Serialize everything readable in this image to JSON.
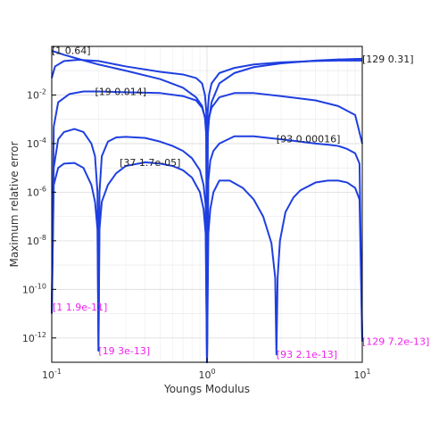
{
  "chart_data": {
    "type": "line",
    "title": "",
    "xlabel": "Youngs Modulus",
    "ylabel": "Maximum relative error",
    "xscale": "log",
    "yscale": "log",
    "xlim": [
      0.1,
      10
    ],
    "ylim": [
      1e-13,
      1
    ],
    "grid": true,
    "colors": {
      "series": "#1f3fe0",
      "max_annotation": "#222222",
      "min_annotation": "#ee22ee"
    },
    "xticks": [
      {
        "value": 0.1,
        "base": "10",
        "exp": "-1"
      },
      {
        "value": 1,
        "base": "10",
        "exp": "0"
      },
      {
        "value": 10,
        "base": "10",
        "exp": "1"
      }
    ],
    "yticks": [
      {
        "value": 1e-12,
        "base": "10",
        "exp": "-12"
      },
      {
        "value": 1e-10,
        "base": "10",
        "exp": "-10"
      },
      {
        "value": 1e-08,
        "base": "10",
        "exp": "-8"
      },
      {
        "value": 1e-06,
        "base": "10",
        "exp": "-6"
      },
      {
        "value": 0.0001,
        "base": "10",
        "exp": "-4"
      },
      {
        "value": 0.01,
        "base": "10",
        "exp": "-2"
      }
    ],
    "series": [
      {
        "x": [
          0.1,
          0.105,
          0.12,
          0.15,
          0.2,
          0.3,
          0.5,
          0.7,
          0.85,
          0.93,
          0.97,
          0.99,
          1.0,
          1.01,
          1.03,
          1.07,
          1.2,
          1.5,
          2,
          3,
          5,
          7,
          10
        ],
        "y": [
          0.64,
          0.6,
          0.45,
          0.3,
          0.18,
          0.1,
          0.045,
          0.02,
          0.008,
          0.0035,
          0.0012,
          0.0002,
          1e-13,
          0.0002,
          0.001,
          0.005,
          0.03,
          0.08,
          0.14,
          0.2,
          0.26,
          0.29,
          0.31
        ]
      },
      {
        "x": [
          0.1,
          0.105,
          0.12,
          0.15,
          0.2,
          0.3,
          0.5,
          0.7,
          0.85,
          0.93,
          0.97,
          0.99,
          1.0,
          1.01,
          1.03,
          1.07,
          1.2,
          1.5,
          2,
          3,
          5,
          7,
          10
        ],
        "y": [
          0.05,
          0.15,
          0.25,
          0.28,
          0.25,
          0.15,
          0.09,
          0.07,
          0.05,
          0.03,
          0.01,
          0.002,
          1e-13,
          0.002,
          0.01,
          0.03,
          0.08,
          0.13,
          0.18,
          0.22,
          0.25,
          0.26,
          0.26
        ]
      },
      {
        "x": [
          0.1,
          0.103,
          0.11,
          0.13,
          0.16,
          0.2,
          0.3,
          0.5,
          0.7,
          0.85,
          0.93,
          0.97,
          0.99,
          1.0,
          1.01,
          1.03,
          1.07,
          1.2,
          1.5,
          2,
          3,
          5,
          7,
          9,
          10
        ],
        "y": [
          1e-11,
          0.0005,
          0.005,
          0.011,
          0.014,
          0.014,
          0.013,
          0.012,
          0.009,
          0.006,
          0.003,
          0.0012,
          0.0003,
          1e-13,
          0.0003,
          0.0012,
          0.003,
          0.008,
          0.012,
          0.012,
          0.009,
          0.006,
          0.0035,
          0.0015,
          0.0001
        ]
      },
      {
        "x": [
          0.1,
          0.103,
          0.11,
          0.12,
          0.14,
          0.16,
          0.18,
          0.19,
          0.197,
          0.2,
          0.203,
          0.21,
          0.23,
          0.26,
          0.3,
          0.4,
          0.5,
          0.6,
          0.7,
          0.8,
          0.9,
          0.95,
          0.98,
          1.0,
          1.02,
          1.05,
          1.1,
          1.2,
          1.5,
          2,
          2.5,
          3,
          4,
          5,
          6,
          7,
          8,
          9,
          9.6,
          10
        ],
        "y": [
          1e-11,
          1e-05,
          0.00015,
          0.0003,
          0.0004,
          0.0003,
          0.0001,
          3e-05,
          1e-06,
          3e-13,
          1e-06,
          3e-05,
          0.00012,
          0.00018,
          0.00019,
          0.00017,
          0.00012,
          8e-05,
          5e-05,
          2.5e-05,
          8e-06,
          2e-06,
          3e-07,
          1e-13,
          3e-06,
          2e-05,
          5e-05,
          0.0001,
          0.0002,
          0.0002,
          0.00017,
          0.00015,
          0.00012,
          0.0001,
          9e-05,
          8e-05,
          6e-05,
          4e-05,
          1.5e-05,
          7.2e-13
        ]
      },
      {
        "x": [
          0.1,
          0.103,
          0.11,
          0.12,
          0.14,
          0.16,
          0.18,
          0.19,
          0.197,
          0.2,
          0.203,
          0.21,
          0.23,
          0.26,
          0.3,
          0.4,
          0.5,
          0.6,
          0.7,
          0.8,
          0.9,
          0.95,
          0.98,
          1.0,
          1.02,
          1.05,
          1.1,
          1.2,
          1.4,
          1.7,
          2.0,
          2.3,
          2.6,
          2.75,
          2.8,
          2.85,
          2.95,
          3.2,
          3.6,
          4,
          5,
          6,
          7,
          8,
          9,
          9.6,
          10
        ],
        "y": [
          1e-11,
          2e-06,
          1e-05,
          1.5e-05,
          1.6e-05,
          1e-05,
          2e-06,
          4e-07,
          3e-08,
          3e-13,
          3e-08,
          4e-07,
          2e-06,
          6e-06,
          1.2e-05,
          1.7e-05,
          1.5e-05,
          1.2e-05,
          8e-06,
          4e-06,
          1e-06,
          2e-07,
          2e-08,
          1e-13,
          2e-08,
          2e-07,
          1e-06,
          3e-06,
          3e-06,
          1.5e-06,
          5e-07,
          1e-07,
          8e-09,
          3e-10,
          2.1e-13,
          3e-10,
          1e-08,
          1.5e-07,
          6e-07,
          1.2e-06,
          2.5e-06,
          3e-06,
          3e-06,
          2.5e-06,
          1.5e-06,
          5e-07,
          7.2e-13
        ]
      }
    ],
    "annotations_max": [
      {
        "text": "[1 0.64]",
        "x": 0.1,
        "y": 0.64,
        "align": "start",
        "dx": 0,
        "dy": 3
      },
      {
        "text": "[19 0.014]",
        "x": 0.19,
        "y": 0.014,
        "align": "start",
        "dx": 0,
        "dy": 4
      },
      {
        "text": "[37 1.7e-05]",
        "x": 0.43,
        "y": 1.7e-05,
        "align": "middle",
        "dx": 0,
        "dy": 4
      },
      {
        "text": "[93 0.00016]",
        "x": 2.8,
        "y": 0.00016,
        "align": "start",
        "dx": 0,
        "dy": 4
      },
      {
        "text": "[129 0.31]",
        "x": 10,
        "y": 0.31,
        "align": "start",
        "dx": 0,
        "dy": 4
      }
    ],
    "annotations_min": [
      {
        "text": "[1 1.9e-11]",
        "x": 0.1,
        "y": 1.9e-11,
        "align": "start",
        "dx": 1,
        "dy": 4
      },
      {
        "text": "[19 3e-13]",
        "x": 0.2,
        "y": 3e-13,
        "align": "start",
        "dx": 0,
        "dy": 4
      },
      {
        "text": "[93 2.1e-13]",
        "x": 2.8,
        "y": 2.1e-13,
        "align": "start",
        "dx": 0,
        "dy": 4
      },
      {
        "text": "[129 7.2e-13]",
        "x": 10,
        "y": 7.2e-13,
        "align": "start",
        "dx": 0,
        "dy": 4
      }
    ]
  }
}
